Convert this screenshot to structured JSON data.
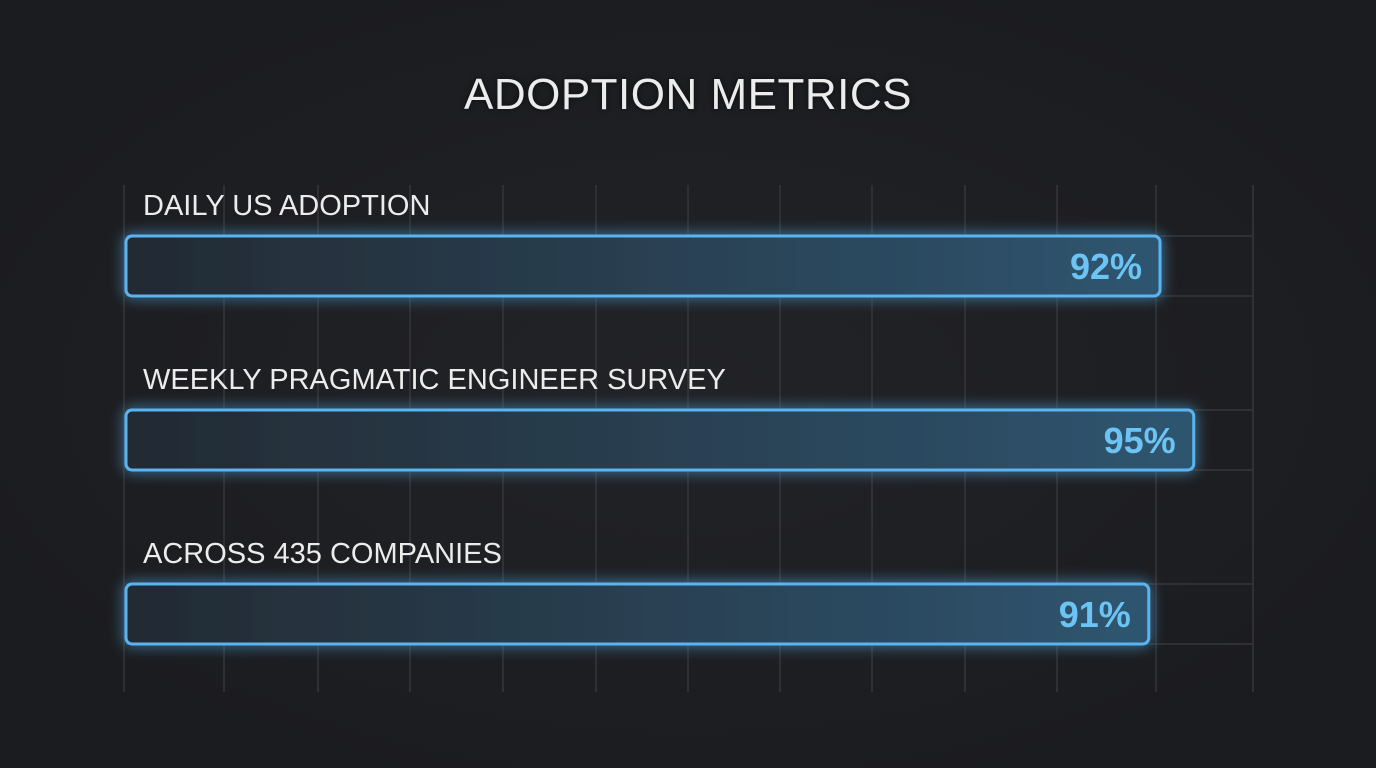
{
  "chart_data": {
    "type": "bar",
    "orientation": "horizontal",
    "title": "ADOPTION METRICS",
    "categories": [
      "DAILY US ADOPTION",
      "WEEKLY PRAGMATIC ENGINEER SURVEY",
      "ACROSS 435 COMPANIES"
    ],
    "values": [
      92,
      95,
      91
    ],
    "value_labels": [
      "92%",
      "95%",
      "91%"
    ],
    "unit": "%",
    "xlim": [
      0,
      100
    ],
    "grid": true,
    "colors": {
      "background": "#1d1e21",
      "bar_stroke": "#5ab4f0",
      "bar_fill": "#2c4a62",
      "label": "#6cc4f4",
      "text": "#ececec",
      "grid": "#3a3c41"
    }
  }
}
